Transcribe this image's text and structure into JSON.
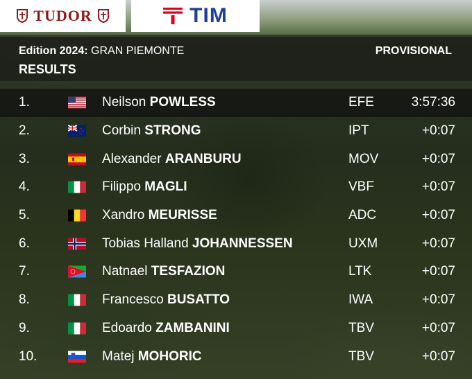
{
  "sponsors": {
    "left": "TUDOR",
    "right": "TIM"
  },
  "header": {
    "edition_prefix": "Edition 2024:",
    "race": "GRAN PIEMONTE",
    "status": "PROVISIONAL",
    "title": "RESULTS"
  },
  "results": [
    {
      "pos": "1.",
      "flag": "flag-usa-icon",
      "first": "Neilson",
      "last": "POWLESS",
      "team": "EFE",
      "time": "3:57:36"
    },
    {
      "pos": "2.",
      "flag": "flag-new-zealand-icon",
      "first": "Corbin",
      "last": "STRONG",
      "team": "IPT",
      "time": "+0:07"
    },
    {
      "pos": "3.",
      "flag": "flag-spain-icon",
      "first": "Alexander",
      "last": "ARANBURU",
      "team": "MOV",
      "time": "+0:07"
    },
    {
      "pos": "4.",
      "flag": "flag-italy-icon",
      "first": "Filippo",
      "last": "MAGLI",
      "team": "VBF",
      "time": "+0:07"
    },
    {
      "pos": "5.",
      "flag": "flag-belgium-icon",
      "first": "Xandro",
      "last": "MEURISSE",
      "team": "ADC",
      "time": "+0:07"
    },
    {
      "pos": "6.",
      "flag": "flag-norway-icon",
      "first": "Tobias Halland",
      "last": "JOHANNESSEN",
      "team": "UXM",
      "time": "+0:07"
    },
    {
      "pos": "7.",
      "flag": "flag-eritrea-icon",
      "first": "Natnael",
      "last": "TESFAZION",
      "team": "LTK",
      "time": "+0:07"
    },
    {
      "pos": "8.",
      "flag": "flag-italy-icon",
      "first": "Francesco",
      "last": "BUSATTO",
      "team": "IWA",
      "time": "+0:07"
    },
    {
      "pos": "9.",
      "flag": "flag-italy-icon",
      "first": "Edoardo",
      "last": "ZAMBANINI",
      "team": "TBV",
      "time": "+0:07"
    },
    {
      "pos": "10.",
      "flag": "flag-slovenia-icon",
      "first": "Matej",
      "last": "MOHORIC",
      "team": "TBV",
      "time": "+0:07"
    }
  ]
}
